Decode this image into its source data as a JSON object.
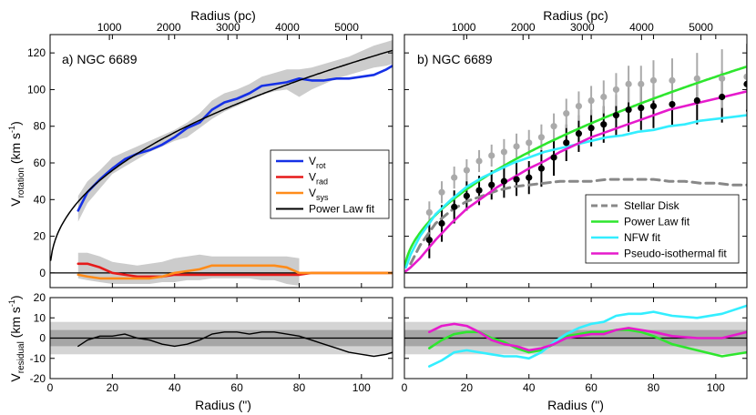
{
  "chart_data": [
    {
      "panel": "a",
      "type": "line",
      "title": "a)  NGC 6689",
      "xlabel": "Radius (\")",
      "top_xlabel": "Radius (pc)",
      "ylabel_main": "V",
      "ylabel_sub": "rotation",
      "ylabel_units": " (km s",
      "ylabel_exp": "-1",
      "ylabel_close": ")",
      "xlim": [
        0,
        110
      ],
      "ylim": [
        -8,
        130
      ],
      "xticks": [
        0,
        20,
        40,
        60,
        80,
        100
      ],
      "yticks": [
        0,
        20,
        40,
        60,
        80,
        100,
        120
      ],
      "top_xticks": [
        1000,
        2000,
        3000,
        4000,
        5000
      ],
      "pc_per_arcsec": 52.5,
      "series": [
        {
          "name": "Vrot_band",
          "kind": "band",
          "color": "#cccccc",
          "x": [
            9,
            12,
            16,
            20,
            24,
            28,
            32,
            36,
            40,
            44,
            48,
            52,
            56,
            60,
            64,
            68,
            72,
            76,
            80,
            84,
            88,
            92,
            96,
            100,
            104,
            108,
            110
          ],
          "low": [
            28,
            38,
            46,
            54,
            58,
            62,
            66,
            69,
            72,
            74,
            79,
            84,
            88,
            91,
            94,
            97,
            99,
            100,
            96,
            100,
            103,
            106,
            108,
            110,
            112,
            113,
            114
          ],
          "high": [
            42,
            50,
            56,
            63,
            66,
            69,
            72,
            75,
            78,
            82,
            87,
            94,
            98,
            100,
            103,
            107,
            109,
            111,
            111,
            112,
            114,
            116,
            118,
            121,
            124,
            126,
            127
          ]
        },
        {
          "name": "Vrad_band",
          "kind": "band",
          "color": "#cccccc",
          "x": [
            9,
            12,
            16,
            20,
            24,
            28,
            32,
            36,
            40,
            44,
            48,
            52,
            56,
            60,
            64,
            68,
            72,
            76,
            80
          ],
          "low": [
            -3,
            -4,
            -5,
            -6,
            -6,
            -6,
            -6,
            -5,
            -5,
            -4,
            -4,
            -3,
            -3,
            -3,
            -3,
            -4,
            -4,
            -6,
            -7
          ],
          "high": [
            11,
            11,
            9,
            6,
            5,
            4,
            5,
            6,
            8,
            9,
            10,
            9,
            9,
            9,
            9,
            9,
            9,
            9,
            8
          ]
        },
        {
          "name": "V_rot",
          "label_main": "V",
          "label_sub": "rot",
          "color": "#1530e6",
          "width": 2.6,
          "x": [
            9,
            12,
            16,
            20,
            24,
            28,
            32,
            36,
            40,
            44,
            48,
            52,
            56,
            60,
            64,
            68,
            72,
            76,
            80,
            84,
            88,
            92,
            96,
            100,
            104,
            108,
            110
          ],
          "y": [
            34,
            44,
            51,
            57,
            62,
            65,
            67,
            70,
            74,
            79,
            82,
            89,
            93,
            95,
            98,
            102,
            103,
            104,
            106,
            105,
            105,
            106,
            106,
            107,
            108,
            111,
            113
          ]
        },
        {
          "name": "V_rad",
          "label_main": "V",
          "label_sub": "rad",
          "color": "#e61a1a",
          "width": 2.6,
          "x": [
            9,
            12,
            16,
            20,
            24,
            28,
            32,
            36,
            40,
            44,
            48,
            52,
            56,
            60,
            64,
            68,
            72,
            76,
            80,
            84,
            88,
            92,
            96,
            100,
            104,
            108,
            110
          ],
          "y": [
            5,
            5,
            3,
            0,
            -1,
            -2,
            -2,
            -2,
            -1,
            -1,
            -1,
            -1,
            -1,
            -1,
            -1,
            -1,
            -1,
            -1,
            -1,
            0,
            0,
            0,
            0,
            0,
            0,
            0,
            0
          ]
        },
        {
          "name": "V_sys",
          "label_main": "V",
          "label_sub": "sys",
          "color": "#ff8c1a",
          "width": 2.6,
          "x": [
            9,
            12,
            16,
            20,
            24,
            28,
            32,
            36,
            40,
            44,
            48,
            52,
            56,
            60,
            64,
            68,
            72,
            76,
            80,
            84,
            88,
            92,
            96,
            100,
            104,
            108,
            110
          ],
          "y": [
            -1,
            -2,
            -3,
            -3,
            -3,
            -3,
            -3,
            -2,
            0,
            1,
            2,
            4,
            4,
            4,
            4,
            4,
            4,
            3,
            0,
            0,
            0,
            0,
            0,
            0,
            0,
            0,
            0
          ]
        },
        {
          "name": "Power Law fit",
          "color": "#000000",
          "width": 1.5,
          "power_law": {
            "a": 14.3,
            "b": 0.455
          }
        }
      ],
      "legend": [
        "V_rot",
        "V_rad",
        "V_sys",
        "Power Law fit"
      ]
    },
    {
      "panel": "b",
      "type": "line",
      "title": "b)  NGC 6689",
      "xlabel": "Radius (\")",
      "top_xlabel": "Radius (pc)",
      "xlim": [
        0,
        110
      ],
      "ylim": [
        -8,
        130
      ],
      "xticks": [
        0,
        20,
        40,
        60,
        80,
        100
      ],
      "yticks": [
        0,
        20,
        40,
        60,
        80,
        100,
        120
      ],
      "top_xticks": [
        1000,
        2000,
        3000,
        4000,
        5000
      ],
      "pc_per_arcsec": 52.5,
      "points": [
        {
          "name": "rotation_data",
          "color": "#000000",
          "x": [
            8,
            12,
            16,
            20,
            24,
            28,
            32,
            36,
            40,
            44,
            48,
            52,
            56,
            60,
            64,
            68,
            72,
            76,
            80,
            86,
            94,
            102,
            110
          ],
          "y": [
            18,
            27,
            36,
            42,
            45,
            48,
            50,
            51,
            52,
            57,
            63,
            71,
            76,
            79,
            81,
            86,
            89,
            90,
            91,
            92,
            94,
            96,
            103
          ],
          "err": [
            10,
            10,
            9,
            8,
            8,
            8,
            9,
            9,
            9,
            10,
            10,
            10,
            10,
            10,
            10,
            11,
            12,
            12,
            12,
            12,
            13,
            14,
            15
          ]
        },
        {
          "name": "observed_data",
          "color": "#aaaaaa",
          "x": [
            8,
            12,
            16,
            20,
            24,
            28,
            32,
            36,
            40,
            44,
            48,
            52,
            56,
            60,
            64,
            68,
            72,
            76,
            80,
            86,
            94,
            102,
            110
          ],
          "y": [
            33,
            44,
            52,
            56,
            61,
            64,
            66,
            69,
            71,
            74,
            80,
            87,
            91,
            94,
            96,
            100,
            103,
            103,
            105,
            105,
            106,
            106,
            107
          ],
          "err": [
            6,
            6,
            6,
            6,
            6,
            6,
            7,
            7,
            7,
            7,
            7,
            8,
            8,
            8,
            9,
            9,
            10,
            10,
            11,
            12,
            14,
            16,
            18
          ]
        }
      ],
      "series": [
        {
          "name": "Stellar Disk",
          "color": "#888888",
          "width": 3,
          "dash": "9 6",
          "x": [
            2,
            5,
            10,
            15,
            20,
            25,
            30,
            35,
            40,
            45,
            50,
            55,
            60,
            65,
            70,
            75,
            80,
            85,
            90,
            95,
            100,
            105,
            110
          ],
          "y": [
            5,
            15,
            27,
            34,
            39,
            42,
            45,
            47,
            48,
            49,
            50,
            50,
            50,
            51,
            51,
            51,
            51,
            50,
            50,
            49,
            49,
            48,
            48
          ]
        },
        {
          "name": "Power Law fit",
          "color": "#2ee62e",
          "width": 2.6,
          "power_law": {
            "a": 9.32,
            "b": 0.53
          }
        },
        {
          "name": "NFW fit",
          "color": "#33eeff",
          "width": 2.6,
          "x": [
            0.5,
            2,
            5,
            8,
            10,
            15,
            20,
            25,
            30,
            35,
            40,
            45,
            50,
            55,
            60,
            65,
            70,
            75,
            80,
            85,
            90,
            95,
            100,
            105,
            110
          ],
          "y": [
            3,
            10,
            20,
            27,
            32,
            40,
            47,
            52,
            56,
            60,
            63,
            66,
            68,
            70,
            72,
            74,
            75,
            77,
            78,
            80,
            81,
            83,
            84,
            85,
            86
          ]
        },
        {
          "name": "Pseudo-isothermal fit",
          "color": "#e61acc",
          "width": 2.6,
          "x": [
            0.5,
            2,
            5,
            8,
            10,
            15,
            20,
            25,
            30,
            35,
            40,
            45,
            50,
            55,
            60,
            65,
            70,
            75,
            80,
            85,
            90,
            95,
            100,
            105,
            110
          ],
          "y": [
            1,
            3,
            8,
            14,
            18,
            27,
            35,
            41,
            47,
            52,
            57,
            61,
            66,
            70,
            74,
            77,
            80,
            83,
            86,
            89,
            91,
            93,
            95,
            97,
            99
          ]
        }
      ],
      "legend": [
        "Stellar Disk",
        "Power Law fit",
        "NFW fit",
        "Pseudo-isothermal fit"
      ]
    },
    {
      "panel": "a-residual",
      "type": "line",
      "xlabel": "Radius (\")",
      "ylabel_main": "V",
      "ylabel_sub": "residual",
      "ylabel_units": " (km s",
      "ylabel_exp": "-1",
      "ylabel_close": ")",
      "xlim": [
        0,
        110
      ],
      "ylim": [
        -20,
        20
      ],
      "xticks": [
        0,
        20,
        40,
        60,
        80,
        100
      ],
      "yticks": [
        -20,
        -10,
        0,
        10,
        20
      ],
      "bands": [
        {
          "low": -8,
          "high": 8,
          "color": "#d4d4d4"
        },
        {
          "low": -4,
          "high": 4,
          "color": "#a6a6a6"
        }
      ],
      "series": [
        {
          "name": "residual_powerlaw",
          "color": "#000000",
          "width": 1.4,
          "x": [
            9,
            12,
            16,
            20,
            24,
            28,
            32,
            36,
            40,
            44,
            48,
            52,
            56,
            60,
            64,
            68,
            72,
            76,
            80,
            84,
            88,
            92,
            96,
            100,
            104,
            108,
            110
          ],
          "y": [
            -4,
            -1,
            1,
            1,
            2,
            0,
            -1,
            -3,
            -4,
            -3,
            -1,
            2,
            3,
            3,
            2,
            3,
            3,
            2,
            1,
            -1,
            -3,
            -5,
            -7,
            -8,
            -9,
            -8,
            -7
          ]
        }
      ]
    },
    {
      "panel": "b-residual",
      "type": "line",
      "xlabel": "Radius (\")",
      "xlim": [
        0,
        110
      ],
      "ylim": [
        -20,
        20
      ],
      "xticks": [
        0,
        20,
        40,
        60,
        80,
        100
      ],
      "yticks": [
        -20,
        -10,
        0,
        10,
        20
      ],
      "bands": [
        {
          "low": -8,
          "high": 8,
          "color": "#d4d4d4"
        },
        {
          "low": -4,
          "high": 4,
          "color": "#a6a6a6"
        }
      ],
      "series": [
        {
          "name": "residual_power_law",
          "color": "#2ee62e",
          "width": 2.6,
          "x": [
            8,
            12,
            16,
            20,
            24,
            28,
            32,
            36,
            40,
            44,
            48,
            52,
            56,
            60,
            64,
            68,
            72,
            76,
            80,
            86,
            94,
            102,
            110
          ],
          "y": [
            -5,
            -1,
            2,
            3,
            3,
            0,
            -2,
            -5,
            -7,
            -6,
            -3,
            1,
            2,
            3,
            3,
            4,
            4,
            3,
            1,
            -3,
            -6,
            -9,
            -7
          ]
        },
        {
          "name": "residual_nfw",
          "color": "#33eeff",
          "width": 2.6,
          "x": [
            8,
            12,
            16,
            20,
            24,
            28,
            32,
            36,
            40,
            44,
            48,
            52,
            56,
            60,
            64,
            68,
            72,
            76,
            80,
            86,
            94,
            102,
            110
          ],
          "y": [
            -14,
            -11,
            -7,
            -6,
            -7,
            -8,
            -9,
            -9,
            -10,
            -7,
            -2,
            2,
            5,
            7,
            8,
            11,
            12,
            12,
            13,
            11,
            10,
            12,
            16
          ]
        },
        {
          "name": "residual_pseudo_isothermal",
          "color": "#e61acc",
          "width": 2.6,
          "x": [
            8,
            12,
            16,
            20,
            24,
            28,
            32,
            36,
            40,
            44,
            48,
            52,
            56,
            60,
            64,
            68,
            72,
            76,
            80,
            86,
            94,
            102,
            110
          ],
          "y": [
            3,
            6,
            7,
            6,
            3,
            -1,
            -3,
            -4,
            -6,
            -5,
            -3,
            0,
            1,
            2,
            2,
            4,
            5,
            4,
            3,
            1,
            0,
            0,
            3
          ]
        }
      ]
    }
  ]
}
